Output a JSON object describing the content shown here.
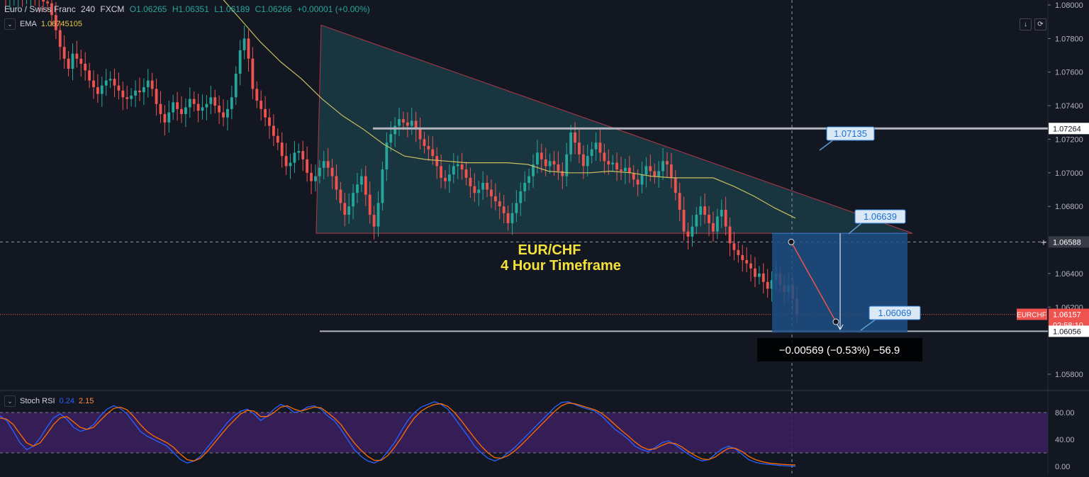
{
  "header": {
    "symbol_name": "Euro / Swiss Franc",
    "interval": "240",
    "exchange": "FXCM",
    "open": "O1.06265",
    "high": "H1.06351",
    "low": "L1.06189",
    "close": "C1.06266",
    "change": "+0.00001 (+0.00%)"
  },
  "ema": {
    "label": "EMA",
    "value": "1.06745105"
  },
  "stoch": {
    "label": "Stoch RSI",
    "k": "0.24",
    "d": "2.15"
  },
  "toolbar": {
    "down_icon": "↓",
    "refresh_icon": "⟳"
  },
  "colors": {
    "background": "#131722",
    "up": "#26a69a",
    "down": "#ef5350",
    "ema": "#c9bf5e",
    "triangle_fill": "#1b3b45",
    "triangle_stroke": "#b23a48",
    "measure_box": "#1e4f84",
    "stoch_band": "#3a1f5c",
    "stoch_k": "#2962ff",
    "stoch_d": "#ff6d00"
  },
  "annotations": {
    "title_line1": "EUR/CHF",
    "title_line2": "4 Hour Timeframe",
    "callout_upper": "1.07135",
    "callout_mid": "1.06639",
    "callout_low": "1.06069",
    "measure": "−0.00569 (−0.53%) −56.9"
  },
  "chart_data": [
    {
      "type": "candlestick",
      "price_axis": {
        "ticks": [
          "1.08000",
          "1.07800",
          "1.07600",
          "1.07400",
          "1.07200",
          "1.07000",
          "1.06800",
          "1.06400",
          "1.06200",
          "1.05800"
        ],
        "tick_values": [
          1.08,
          1.078,
          1.076,
          1.074,
          1.072,
          1.07,
          1.068,
          1.064,
          1.062,
          1.058
        ],
        "range": [
          1.0577,
          1.0803
        ]
      },
      "labels": {
        "resistance": "1.07264",
        "crosshair": "1.06588",
        "symbol_tag": "EURCHF",
        "last_price": "1.06157",
        "countdown": "02:58:10",
        "support": "1.06056"
      },
      "levels": {
        "resistance": 1.07264,
        "support": 1.06056,
        "crosshair": 1.06588,
        "last": 1.06157
      },
      "closes": [
        1.0804,
        1.0805,
        1.0806,
        1.0806,
        1.0805,
        1.0806,
        1.0806,
        1.0805,
        1.0803,
        1.0802,
        1.0801,
        1.0794,
        1.0785,
        1.0775,
        1.0768,
        1.0762,
        1.0771,
        1.0768,
        1.0765,
        1.0761,
        1.0755,
        1.0751,
        1.0747,
        1.0752,
        1.0755,
        1.0756,
        1.0752,
        1.0749,
        1.0745,
        1.0744,
        1.0746,
        1.0749,
        1.0748,
        1.0751,
        1.0755,
        1.075,
        1.0741,
        1.0735,
        1.073,
        1.0736,
        1.0742,
        1.0738,
        1.0735,
        1.0739,
        1.0744,
        1.0741,
        1.0737,
        1.0739,
        1.0741,
        1.0745,
        1.074,
        1.0736,
        1.0733,
        1.0738,
        1.0745,
        1.0759,
        1.0773,
        1.078,
        1.0768,
        1.075,
        1.0743,
        1.0738,
        1.0733,
        1.0728,
        1.0722,
        1.0718,
        1.071,
        1.0704,
        1.0706,
        1.0712,
        1.0713,
        1.0708,
        1.07,
        1.0695,
        1.0698,
        1.0703,
        1.0707,
        1.0703,
        1.0698,
        1.069,
        1.0682,
        1.0675,
        1.068,
        1.0688,
        1.0693,
        1.0698,
        1.0687,
        1.0675,
        1.0668,
        1.0682,
        1.0702,
        1.0718,
        1.0723,
        1.0728,
        1.0732,
        1.073,
        1.0728,
        1.0731,
        1.0726,
        1.072,
        1.0716,
        1.0714,
        1.071,
        1.0704,
        1.0697,
        1.0695,
        1.0699,
        1.0704,
        1.0705,
        1.0702,
        1.0697,
        1.0692,
        1.0688,
        1.069,
        1.0694,
        1.069,
        1.0686,
        1.0683,
        1.068,
        1.0676,
        1.067,
        1.0676,
        1.0682,
        1.0689,
        1.0694,
        1.0698,
        1.0705,
        1.0712,
        1.0708,
        1.0704,
        1.0707,
        1.0705,
        1.0701,
        1.0698,
        1.0711,
        1.0724,
        1.0718,
        1.0711,
        1.0704,
        1.071,
        1.0714,
        1.0718,
        1.0712,
        1.0707,
        1.0705,
        1.0706,
        1.0702,
        1.0701,
        1.0703,
        1.07,
        1.0696,
        1.0693,
        1.0699,
        1.0704,
        1.0701,
        1.0698,
        1.0701,
        1.0707,
        1.0705,
        1.0697,
        1.0688,
        1.0678,
        1.0665,
        1.0662,
        1.0668,
        1.0675,
        1.068,
        1.0675,
        1.067,
        1.0665,
        1.0674,
        1.0678,
        1.0668,
        1.0658,
        1.0654,
        1.0651,
        1.0648,
        1.0646,
        1.0643,
        1.0638,
        1.064,
        1.0635,
        1.0631,
        1.0636,
        1.064,
        1.0633,
        1.0629,
        1.0633,
        1.0625,
        1.0616
      ],
      "ema": [
        1.082,
        1.0806,
        1.0792,
        1.0778,
        1.0766,
        1.0756,
        1.0744,
        1.0734,
        1.0726,
        1.0717,
        1.071,
        1.0708,
        1.0707,
        1.0706,
        1.0706,
        1.0706,
        1.0705,
        1.0701,
        1.07,
        1.07,
        1.0701,
        1.07,
        1.0698,
        1.0697,
        1.0697,
        1.0697,
        1.0692,
        1.0686,
        1.0679,
        1.0673
      ],
      "triangle": {
        "apex_top": 1.0788,
        "base": 1.0664,
        "right_end": 1.0664
      },
      "measure": {
        "from": 1.06639,
        "to": 1.06069,
        "change": -0.00569,
        "percent": -0.53,
        "pips": -56.9
      }
    },
    {
      "type": "line",
      "title": "Stoch RSI",
      "y_ticks": [
        "80.00",
        "40.00",
        "0.00"
      ],
      "y_tick_values": [
        80,
        40,
        0
      ],
      "band": [
        20,
        80
      ],
      "range": [
        0,
        100
      ],
      "series": [
        {
          "name": "0.24",
          "values": [
            75,
            68,
            52,
            35,
            25,
            30,
            42,
            58,
            72,
            78,
            70,
            58,
            52,
            55,
            62,
            75,
            85,
            90,
            86,
            78,
            65,
            52,
            45,
            40,
            35,
            30,
            20,
            10,
            5,
            8,
            15,
            28,
            40,
            52,
            65,
            75,
            82,
            85,
            78,
            68,
            75,
            85,
            92,
            88,
            80,
            82,
            88,
            90,
            85,
            75,
            68,
            55,
            40,
            25,
            15,
            8,
            5,
            10,
            22,
            35,
            52,
            68,
            80,
            88,
            92,
            96,
            92,
            85,
            72,
            58,
            45,
            30,
            20,
            12,
            8,
            12,
            20,
            28,
            38,
            48,
            58,
            68,
            78,
            88,
            95,
            96,
            92,
            88,
            85,
            82,
            75,
            65,
            55,
            48,
            40,
            30,
            25,
            22,
            28,
            35,
            38,
            32,
            25,
            18,
            12,
            8,
            10,
            18,
            26,
            30,
            26,
            18,
            10,
            6,
            4,
            3,
            2,
            1,
            0.5,
            0.24
          ]
        },
        {
          "name": "2.15",
          "values": [
            72,
            70,
            62,
            48,
            35,
            30,
            35,
            48,
            62,
            72,
            74,
            66,
            58,
            55,
            58,
            68,
            78,
            86,
            88,
            84,
            74,
            62,
            52,
            45,
            40,
            35,
            28,
            18,
            10,
            8,
            12,
            22,
            34,
            46,
            58,
            68,
            78,
            83,
            82,
            74,
            74,
            80,
            88,
            90,
            85,
            82,
            85,
            88,
            87,
            80,
            72,
            62,
            48,
            35,
            24,
            15,
            9,
            9,
            16,
            28,
            42,
            58,
            72,
            82,
            88,
            92,
            93,
            89,
            80,
            68,
            55,
            42,
            30,
            20,
            13,
            12,
            16,
            23,
            32,
            42,
            52,
            62,
            72,
            82,
            90,
            94,
            93,
            90,
            87,
            84,
            79,
            71,
            62,
            53,
            45,
            36,
            29,
            25,
            26,
            31,
            35,
            34,
            29,
            22,
            16,
            11,
            10,
            14,
            21,
            27,
            27,
            22,
            15,
            10,
            7,
            5,
            4,
            3,
            2.5,
            2.15
          ]
        }
      ]
    }
  ]
}
